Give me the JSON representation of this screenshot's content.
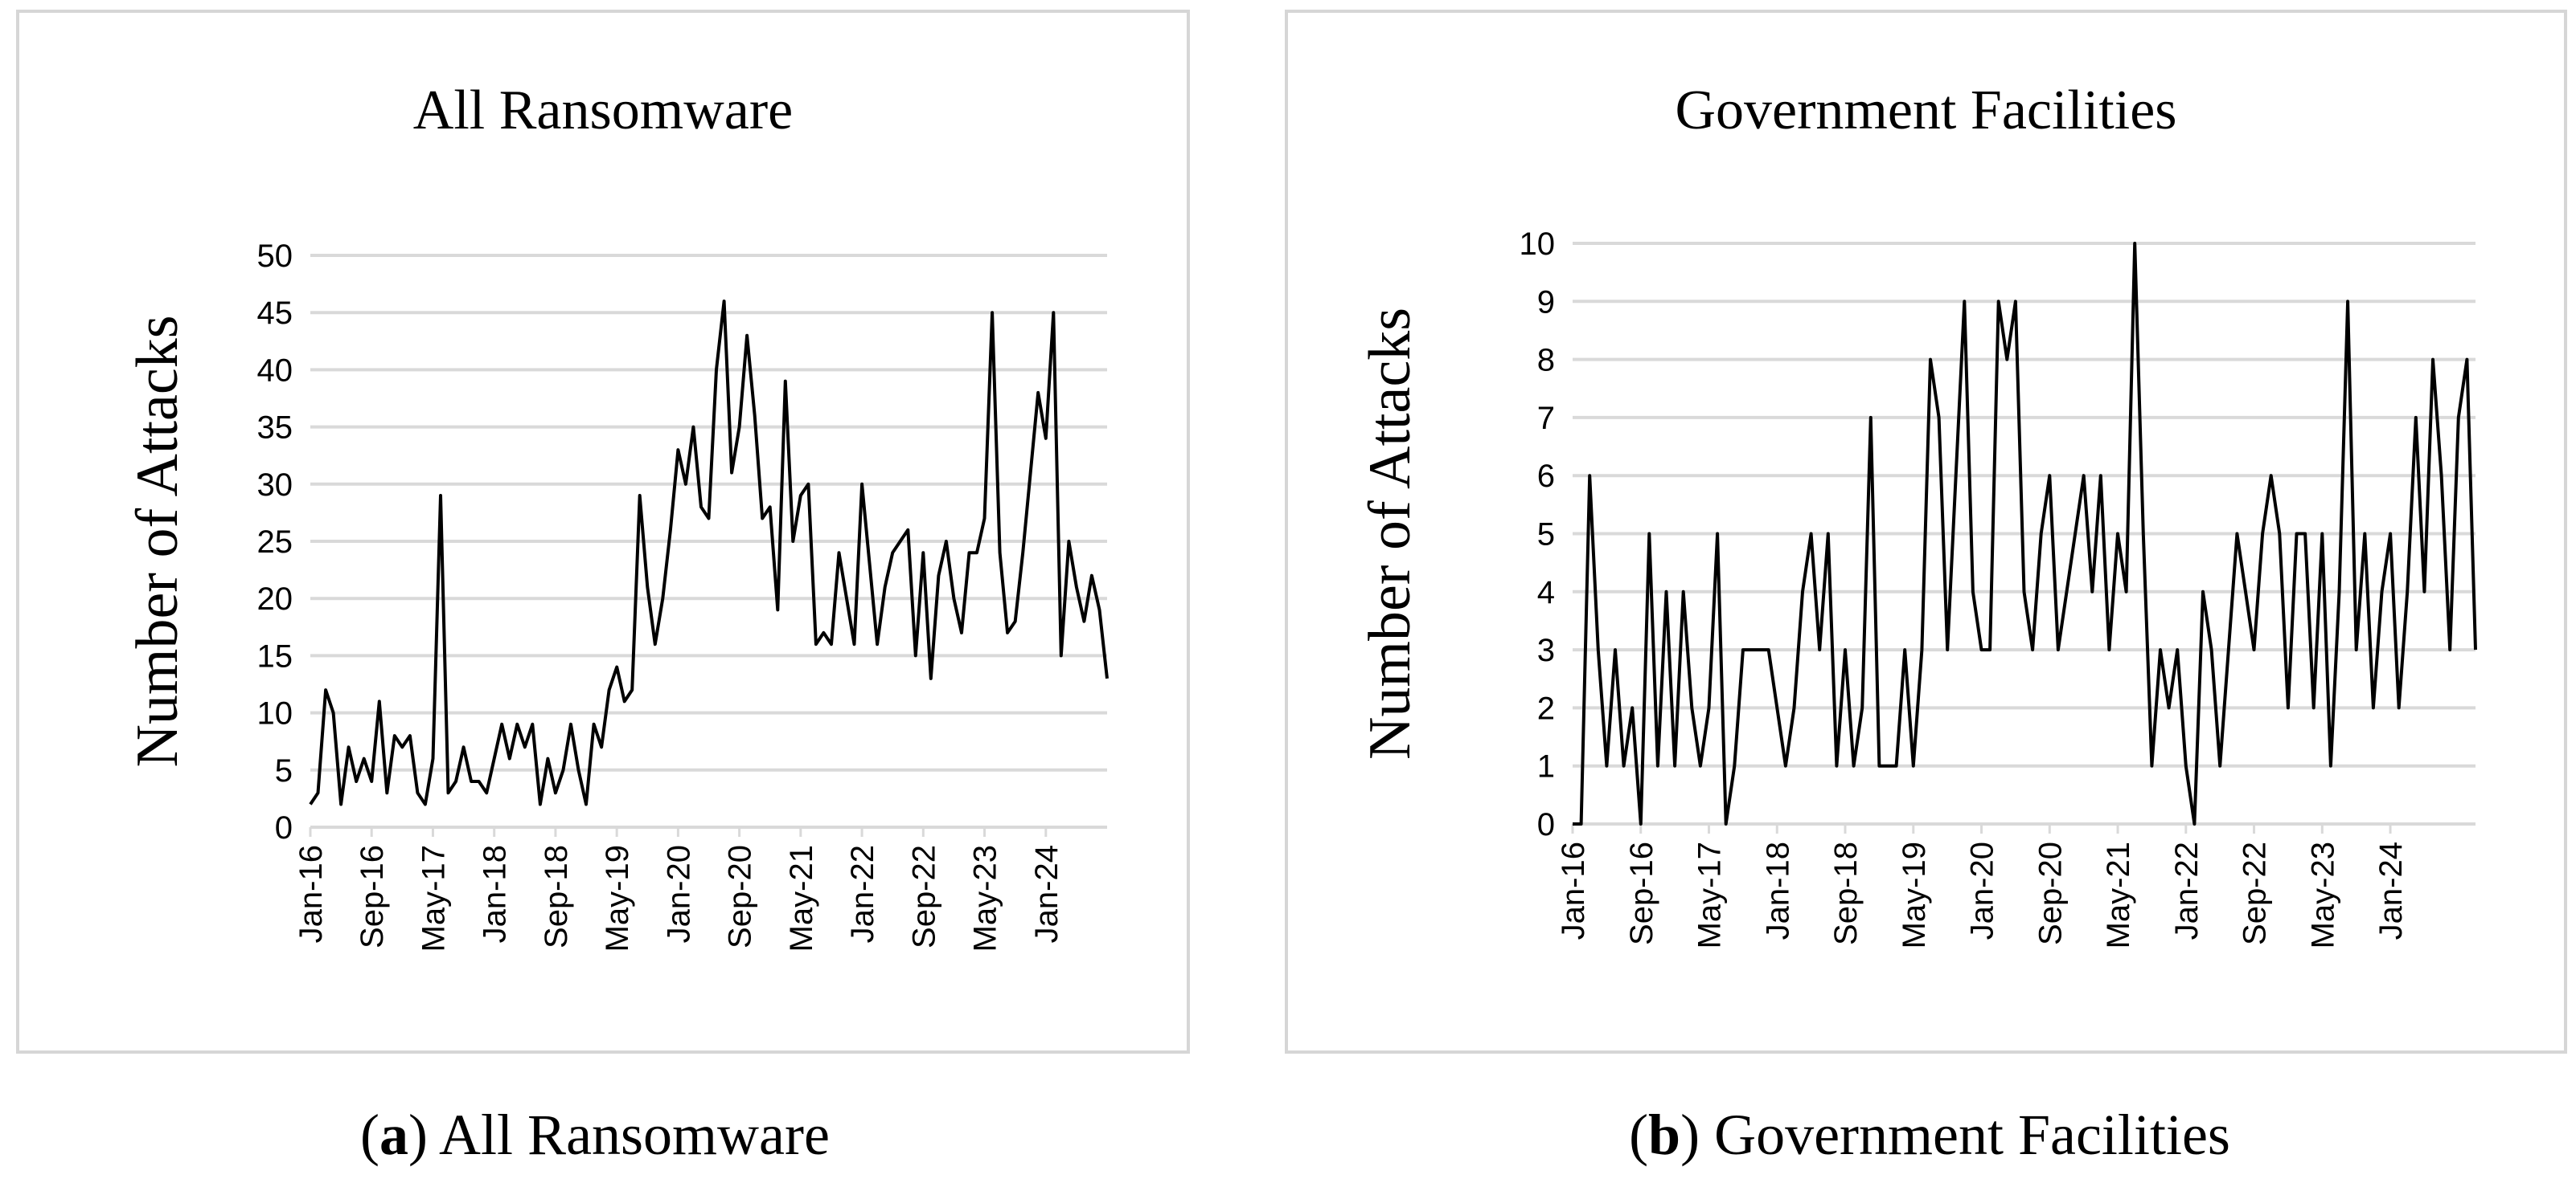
{
  "chart_data": [
    {
      "type": "line",
      "title": "All Ransomware",
      "xlabel": "",
      "ylabel": "Number of Attacks",
      "ylim": [
        0,
        50
      ],
      "ytick_step": 5,
      "grid": true,
      "x_tick_labels": [
        "Jan-16",
        "Sep-16",
        "May-17",
        "Jan-18",
        "Sep-18",
        "May-19",
        "Jan-20",
        "Sep-20",
        "May-21",
        "Jan-22",
        "Sep-22",
        "May-23",
        "Jan-24"
      ],
      "x_tick_every": 8,
      "series": [
        {
          "values": [
            2,
            3,
            12,
            10,
            2,
            7,
            4,
            6,
            4,
            11,
            3,
            8,
            7,
            8,
            3,
            2,
            6,
            29,
            3,
            4,
            7,
            4,
            4,
            3,
            6,
            9,
            6,
            9,
            7,
            9,
            2,
            6,
            3,
            5,
            9,
            5,
            2,
            9,
            7,
            12,
            14,
            11,
            12,
            29,
            21,
            16,
            20,
            26,
            33,
            30,
            35,
            28,
            27,
            40,
            46,
            31,
            35,
            43,
            36,
            27,
            28,
            19,
            39,
            25,
            29,
            30,
            16,
            17,
            16,
            24,
            20,
            16,
            30,
            23,
            16,
            21,
            24,
            25,
            26,
            15,
            24,
            13,
            22,
            25,
            20,
            17,
            24,
            24,
            27,
            45,
            24,
            17,
            18,
            24,
            31,
            38,
            34,
            45,
            15,
            25,
            21,
            18,
            22,
            19,
            13
          ]
        }
      ]
    },
    {
      "type": "line",
      "title": "Government Facilities",
      "xlabel": "",
      "ylabel": "Number of Attacks",
      "ylim": [
        0,
        10
      ],
      "ytick_step": 1,
      "grid": true,
      "x_tick_labels": [
        "Jan-16",
        "Sep-16",
        "May-17",
        "Jan-18",
        "Sep-18",
        "May-19",
        "Jan-20",
        "Sep-20",
        "May-21",
        "Jan-22",
        "Sep-22",
        "May-23",
        "Jan-24"
      ],
      "x_tick_every": 8,
      "series": [
        {
          "values": [
            0,
            0,
            6,
            3,
            1,
            3,
            1,
            2,
            0,
            5,
            1,
            4,
            1,
            4,
            2,
            1,
            2,
            5,
            0,
            1,
            3,
            3,
            3,
            3,
            2,
            1,
            2,
            4,
            5,
            3,
            5,
            1,
            3,
            1,
            2,
            7,
            1,
            1,
            1,
            3,
            1,
            3,
            8,
            7,
            3,
            6,
            9,
            4,
            3,
            3,
            9,
            8,
            9,
            4,
            3,
            5,
            6,
            3,
            4,
            5,
            6,
            4,
            6,
            3,
            5,
            4,
            10,
            5,
            1,
            3,
            2,
            3,
            1,
            0,
            4,
            3,
            1,
            3,
            5,
            4,
            3,
            5,
            6,
            5,
            2,
            5,
            5,
            2,
            5,
            1,
            4,
            9,
            3,
            5,
            2,
            4,
            5,
            2,
            4,
            7,
            4,
            8,
            6,
            3,
            7,
            8,
            3
          ]
        }
      ]
    }
  ],
  "captions": [
    {
      "letter": "a",
      "text": " All Ransomware"
    },
    {
      "letter": "b",
      "text": " Government Facilities"
    }
  ]
}
